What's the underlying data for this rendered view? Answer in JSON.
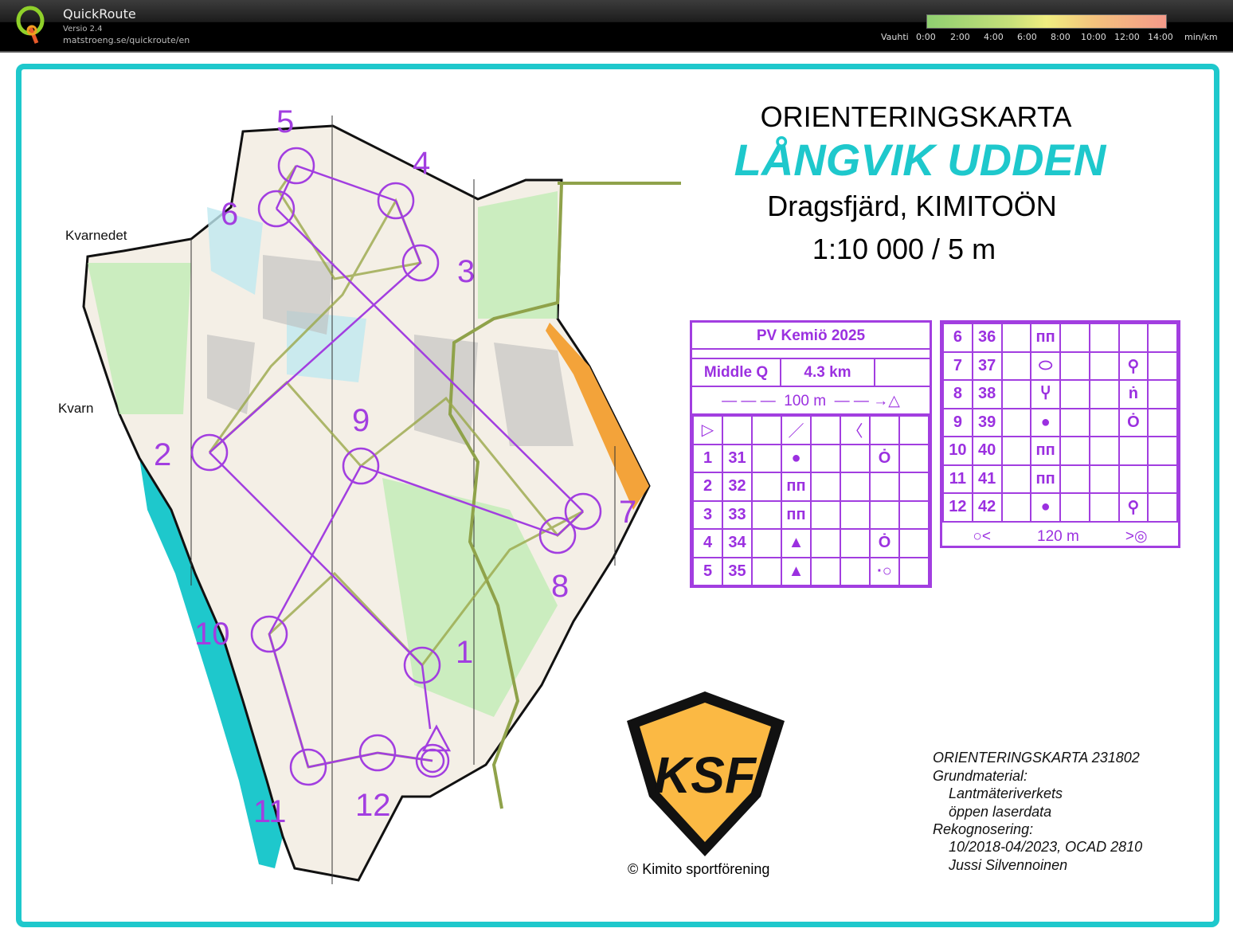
{
  "header": {
    "app_name": "QuickRoute",
    "version": "Versio 2.4",
    "url": "matstroeng.se/quickroute/en",
    "pace_label": "Vauhti",
    "pace_ticks": [
      "0:00",
      "2:00",
      "4:00",
      "6:00",
      "8:00",
      "10:00",
      "12:00",
      "14:00"
    ],
    "pace_unit": "min/km"
  },
  "map": {
    "title": "ORIENTERINGSKARTA",
    "name": "LÅNGVIK UDDEN",
    "place": "Dragsfjärd, KIMITOÖN",
    "scale": "1:10 000 / 5 m",
    "place_labels": [
      "Kvarnedet",
      "Kvarn"
    ],
    "controls": [
      "1",
      "2",
      "3",
      "4",
      "5",
      "6",
      "7",
      "8",
      "9",
      "10",
      "11",
      "12"
    ],
    "colors": {
      "course": "#a23ee0",
      "frame": "#1ec8cc",
      "water": "#1ec8cc",
      "route": "#9aa84a"
    }
  },
  "description": {
    "event": "PV Kemiö 2025",
    "class": "Middle Q",
    "length": "4.3 km",
    "start_leg": "100 m",
    "finish_leg": "120 m",
    "rows": [
      {
        "n": "1",
        "code": "31",
        "feature": "●",
        "extra": "Ȯ"
      },
      {
        "n": "2",
        "code": "32",
        "feature": "ᴨᴨ",
        "extra": ""
      },
      {
        "n": "3",
        "code": "33",
        "feature": "ᴨᴨ",
        "extra": ""
      },
      {
        "n": "4",
        "code": "34",
        "feature": "▲",
        "extra": "Ȯ"
      },
      {
        "n": "5",
        "code": "35",
        "feature": "▲",
        "extra": "·○"
      },
      {
        "n": "6",
        "code": "36",
        "feature": "ᴨᴨ",
        "extra": ""
      },
      {
        "n": "7",
        "code": "37",
        "feature": "⬭",
        "extra": "⚲"
      },
      {
        "n": "8",
        "code": "38",
        "feature": "Ⴤ",
        "extra": "ṅ"
      },
      {
        "n": "9",
        "code": "39",
        "feature": "●",
        "extra": "Ȯ"
      },
      {
        "n": "10",
        "code": "40",
        "feature": "ᴨᴨ",
        "extra": ""
      },
      {
        "n": "11",
        "code": "41",
        "feature": "ᴨᴨ",
        "extra": ""
      },
      {
        "n": "12",
        "code": "42",
        "feature": "●",
        "extra": "⚲"
      }
    ]
  },
  "club": {
    "logo_text": "KSF",
    "copyright": "© Kimito sportförening"
  },
  "credits": [
    "ORIENTERINGSKARTA 231802",
    "Grundmaterial:",
    "Lantmäteriverkets",
    "öppen laserdata",
    "Rekognosering:",
    "10/2018-04/2023, OCAD 2810",
    "Jussi Silvennoinen"
  ]
}
